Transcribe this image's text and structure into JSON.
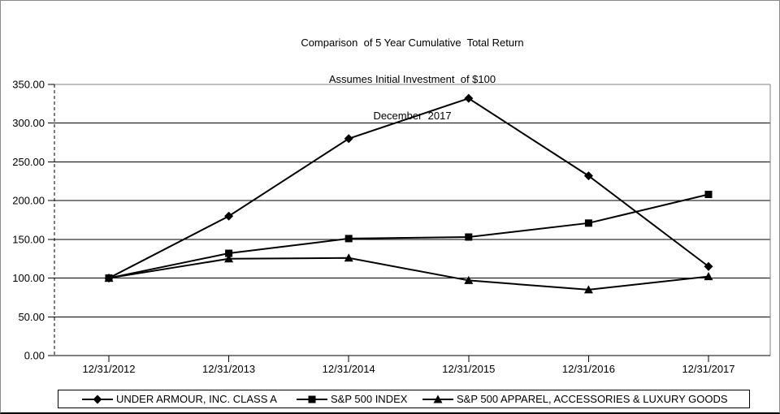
{
  "chart_data": {
    "type": "line",
    "title": "Comparison  of 5 Year Cumulative  Total Return",
    "subtitle": "Assumes Initial Investment  of $100",
    "date_label": "December  2017",
    "categories": [
      "12/31/2012",
      "12/31/2013",
      "12/31/2014",
      "12/31/2015",
      "12/31/2016",
      "12/31/2017"
    ],
    "series": [
      {
        "name": "UNDER ARMOUR, INC. CLASS A",
        "marker": "diamond",
        "values": [
          100,
          180,
          280,
          332,
          232,
          115
        ]
      },
      {
        "name": "S&P 500 INDEX",
        "marker": "square",
        "values": [
          100,
          132,
          151,
          153,
          171,
          208
        ]
      },
      {
        "name": "S&P 500 APPAREL, ACCESSORIES & LUXURY GOODS",
        "marker": "triangle",
        "values": [
          100,
          125,
          126,
          97,
          85,
          102
        ]
      }
    ],
    "xlabel": "",
    "ylabel": "",
    "ylim": [
      0,
      350
    ],
    "yticks": [
      {
        "value": 0,
        "label": "0.00"
      },
      {
        "value": 50,
        "label": "50.00"
      },
      {
        "value": 100,
        "label": "100.00"
      },
      {
        "value": 150,
        "label": "150.00"
      },
      {
        "value": 200,
        "label": "200.00"
      },
      {
        "value": 250,
        "label": "250.00"
      },
      {
        "value": 300,
        "label": "300.00"
      },
      {
        "value": 350,
        "label": "350.00"
      }
    ],
    "grid": "horizontal",
    "legend_position": "bottom-box",
    "colors": {
      "line": "#000000",
      "grid": "#000000",
      "plot_border": "#808080",
      "text": "#000000",
      "background": "#ffffff"
    }
  }
}
